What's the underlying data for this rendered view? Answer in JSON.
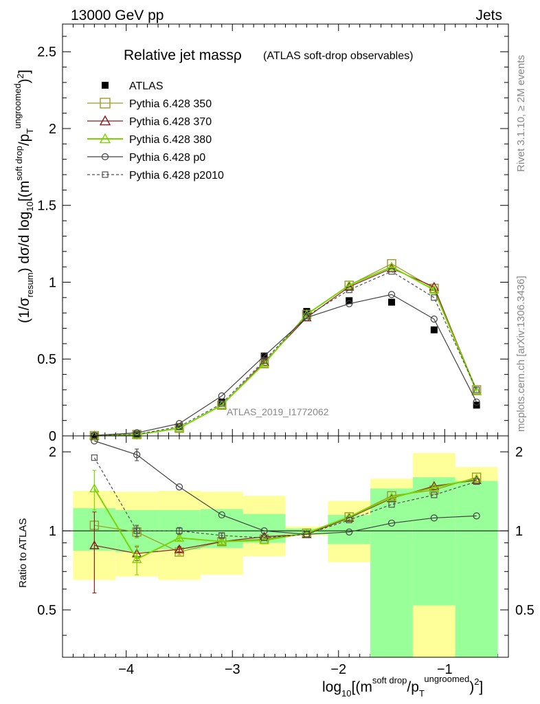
{
  "header": {
    "energy_label": "13000 GeV pp",
    "category_label": "Jets"
  },
  "plot": {
    "title_main": "Relative jet massρ",
    "title_sub": "(ATLAS soft-drop observables)",
    "watermark": "ATLAS_2019_I1772062",
    "side_rivet": "Rivet 3.1.10, ≥ 2M events",
    "side_mcplots": "mcplots.cern.ch [arXiv:1306.3436]",
    "ylabel_top": "(1/σresum) dσ/d log10[(m^soft drop/pT^ungroomed)2]",
    "ylabel_ratio": "Ratio to ATLAS",
    "xlabel": "log10[(m^soft drop/pT^ungroomed)2]"
  },
  "chart_data": {
    "type": "scatter",
    "x_range": [
      -4.6,
      -0.4
    ],
    "x_ticks": [
      -4,
      -3,
      -2,
      -1
    ],
    "x_tick_labels": [
      "−4",
      "−3",
      "−2",
      "−1"
    ],
    "main": {
      "ylim": [
        0,
        2.68
      ],
      "y_ticks": [
        0,
        0.5,
        1,
        1.5,
        2,
        2.5
      ],
      "y_tick_labels": [
        "0",
        "0.5",
        "1",
        "1.5",
        "2",
        "2.5"
      ]
    },
    "ratio": {
      "ylim": [
        0.33,
        2.3
      ],
      "y_ticks": [
        0.5,
        1,
        2
      ],
      "y_tick_labels": [
        "0.5",
        "1",
        "2"
      ],
      "reference_line": 1
    },
    "bins": [
      {
        "x": -4.3,
        "lo": -4.5,
        "hi": -4.1
      },
      {
        "x": -3.9,
        "lo": -4.1,
        "hi": -3.7
      },
      {
        "x": -3.5,
        "lo": -3.7,
        "hi": -3.3
      },
      {
        "x": -3.1,
        "lo": -3.3,
        "hi": -2.9
      },
      {
        "x": -2.7,
        "lo": -2.9,
        "hi": -2.5
      },
      {
        "x": -2.3,
        "lo": -2.5,
        "hi": -2.1
      },
      {
        "x": -1.9,
        "lo": -2.1,
        "hi": -1.7
      },
      {
        "x": -1.5,
        "lo": -1.7,
        "hi": -1.3
      },
      {
        "x": -1.1,
        "lo": -1.3,
        "hi": -0.9
      },
      {
        "x": -0.7,
        "lo": -0.9,
        "hi": -0.5
      }
    ],
    "uncertainty_bands": {
      "yellow": [
        [
          0.65,
          1.42
        ],
        [
          0.67,
          1.41
        ],
        [
          0.65,
          1.42
        ],
        [
          0.68,
          1.41
        ],
        [
          0.8,
          1.36
        ],
        [
          0.96,
          1.04
        ],
        [
          0.76,
          1.3
        ],
        [
          0.33,
          1.58
        ],
        [
          0.33,
          1.98
        ],
        [
          0.33,
          1.75
        ]
      ],
      "green": [
        [
          0.84,
          1.22
        ],
        [
          0.83,
          1.2
        ],
        [
          0.85,
          1.2
        ],
        [
          0.86,
          1.21
        ],
        [
          0.9,
          1.16
        ],
        [
          0.97,
          1.02
        ],
        [
          0.89,
          1.15
        ],
        [
          0.33,
          1.45
        ],
        [
          0.52,
          1.6
        ],
        [
          0.33,
          1.55
        ]
      ]
    },
    "legend": {
      "position": "top-left",
      "entries": [
        "ATLAS",
        "Pythia 6.428 350",
        "Pythia 6.428 370",
        "Pythia 6.428 380",
        "Pythia 6.428 p0",
        "Pythia 6.428 p2010"
      ]
    },
    "series": [
      {
        "name": "ATLAS",
        "color": "#000000",
        "marker": "filled-square",
        "line": "none",
        "values": [
          0.0,
          0.01,
          0.06,
          0.22,
          0.52,
          0.81,
          0.88,
          0.87,
          0.69,
          0.2
        ]
      },
      {
        "name": "Pythia 6.428 350",
        "color": "#9a9a26",
        "marker": "open-square",
        "line": "solid",
        "values": [
          0.001,
          0.009,
          0.05,
          0.2,
          0.47,
          0.79,
          0.98,
          1.12,
          0.96,
          0.3
        ],
        "ratio": [
          1.05,
          0.99,
          0.83,
          0.91,
          0.93,
          0.98,
          1.13,
          1.36,
          1.43,
          1.6
        ],
        "ratio_err": [
          0.0,
          0.05,
          0.02,
          0.02,
          0.0,
          0.0,
          0.0,
          0.0,
          0.0,
          0.0
        ]
      },
      {
        "name": "Pythia 6.428 370",
        "color": "#8b1a1a",
        "marker": "open-triangle",
        "line": "solid",
        "values": [
          0.001,
          0.008,
          0.05,
          0.2,
          0.48,
          0.77,
          0.97,
          1.09,
          0.97,
          0.29
        ],
        "ratio": [
          0.88,
          0.82,
          0.85,
          0.91,
          0.95,
          0.97,
          1.12,
          1.33,
          1.48,
          1.56
        ],
        "ratio_err": [
          0.3,
          0.05,
          0.02,
          0.02,
          0.0,
          0.0,
          0.0,
          0.0,
          0.0,
          0.0
        ]
      },
      {
        "name": "Pythia 6.428 380",
        "color": "#7ad400",
        "marker": "open-triangle",
        "line": "solid",
        "values": [
          0.002,
          0.008,
          0.05,
          0.2,
          0.47,
          0.79,
          0.98,
          1.1,
          0.95,
          0.29
        ],
        "ratio": [
          1.45,
          0.78,
          0.94,
          0.91,
          0.92,
          0.98,
          1.13,
          1.34,
          1.46,
          1.58
        ],
        "ratio_err": [
          0.25,
          0.1,
          0.02,
          0.02,
          0.0,
          0.0,
          0.0,
          0.0,
          0.0,
          0.0
        ]
      },
      {
        "name": "Pythia 6.428 p0",
        "color": "#404040",
        "marker": "open-circle",
        "line": "solid",
        "values": [
          0.003,
          0.02,
          0.08,
          0.26,
          0.52,
          0.77,
          0.86,
          0.92,
          0.76,
          0.22
        ],
        "ratio": [
          2.2,
          1.95,
          1.47,
          1.15,
          1.0,
          0.97,
          0.99,
          1.07,
          1.12,
          1.14
        ],
        "ratio_err": [
          0.0,
          0.1,
          0.0,
          0.0,
          0.0,
          0.0,
          0.0,
          0.0,
          0.0,
          0.0
        ]
      },
      {
        "name": "Pythia 6.428 p2010",
        "color": "#505050",
        "marker": "open-square-small",
        "line": "dashed",
        "values": [
          0.002,
          0.01,
          0.06,
          0.21,
          0.49,
          0.78,
          0.95,
          1.07,
          0.9,
          0.3
        ],
        "ratio": [
          1.9,
          1.0,
          1.0,
          0.96,
          0.94,
          0.97,
          1.1,
          1.26,
          1.37,
          1.54
        ],
        "ratio_err": [
          0.0,
          0.05,
          0.03,
          0.02,
          0.0,
          0.0,
          0.0,
          0.0,
          0.0,
          0.0
        ]
      }
    ]
  }
}
